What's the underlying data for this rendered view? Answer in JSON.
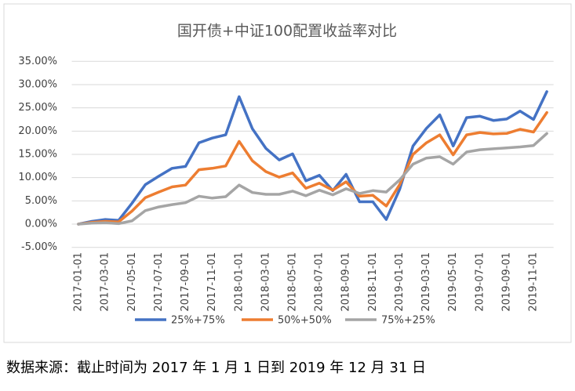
{
  "chart_data": {
    "type": "line",
    "title": "国开债+中证100配置收益率对比",
    "categories": [
      "2017-01-01",
      null,
      "2017-03-01",
      null,
      "2017-05-01",
      null,
      "2017-07-01",
      null,
      "2017-09-01",
      null,
      "2017-11-01",
      null,
      "2018-01-01",
      null,
      "2018-03-01",
      null,
      "2018-05-01",
      null,
      "2018-07-01",
      null,
      "2018-09-01",
      null,
      "2018-11-01",
      null,
      "2019-01-01",
      null,
      "2019-03-01",
      null,
      "2019-05-01",
      null,
      "2019-07-01",
      null,
      "2019-09-01",
      null,
      "2019-11-01",
      null
    ],
    "series": [
      {
        "name": "25%+75%",
        "color": "#4472c4",
        "values": [
          0,
          0.6,
          1.0,
          0.8,
          4.5,
          8.5,
          10.3,
          12.0,
          12.4,
          17.5,
          18.5,
          19.2,
          27.4,
          20.5,
          16.3,
          13.8,
          15.1,
          9.3,
          10.5,
          7.2,
          10.7,
          4.8,
          4.8,
          1.0,
          7.5,
          16.8,
          20.6,
          23.5,
          16.8,
          22.9,
          23.2,
          22.3,
          22.6,
          24.3,
          22.5,
          28.5
        ]
      },
      {
        "name": "50%+50%",
        "color": "#ed7d31",
        "values": [
          0,
          0.4,
          0.6,
          0.5,
          2.8,
          5.7,
          6.9,
          8.0,
          8.4,
          11.7,
          12.0,
          12.5,
          17.8,
          13.6,
          11.3,
          10.1,
          11.0,
          7.7,
          8.8,
          7.3,
          9.1,
          6.0,
          6.2,
          3.9,
          8.5,
          15.0,
          17.5,
          19.2,
          14.9,
          19.2,
          19.7,
          19.4,
          19.5,
          20.4,
          19.8,
          24.0
        ]
      },
      {
        "name": "75%+25%",
        "color": "#a5a5a5",
        "values": [
          0,
          0.2,
          0.3,
          0.1,
          0.7,
          2.9,
          3.7,
          4.2,
          4.6,
          6.0,
          5.6,
          5.9,
          8.4,
          6.8,
          6.4,
          6.4,
          7.1,
          6.1,
          7.3,
          6.3,
          7.6,
          6.6,
          7.2,
          6.9,
          9.5,
          12.9,
          14.2,
          14.5,
          12.9,
          15.5,
          16.0,
          16.2,
          16.4,
          16.6,
          16.9,
          19.5
        ]
      }
    ],
    "ylim": [
      -5,
      35
    ],
    "yticks": [
      {
        "value": -5,
        "label": "-5.00%"
      },
      {
        "value": 0,
        "label": "0.00%"
      },
      {
        "value": 5,
        "label": "5.00%"
      },
      {
        "value": 10,
        "label": "10.00%"
      },
      {
        "value": 15,
        "label": "15.00%"
      },
      {
        "value": 20,
        "label": "20.00%"
      },
      {
        "value": 25,
        "label": "25.00%"
      },
      {
        "value": 30,
        "label": "30.00%"
      },
      {
        "value": 35,
        "label": "35.00%"
      }
    ],
    "grid": true,
    "legend": "bottom"
  },
  "note": "数据来源：截止时间为 2017 年 1 月 1 日到 2019 年 12 月 31 日"
}
